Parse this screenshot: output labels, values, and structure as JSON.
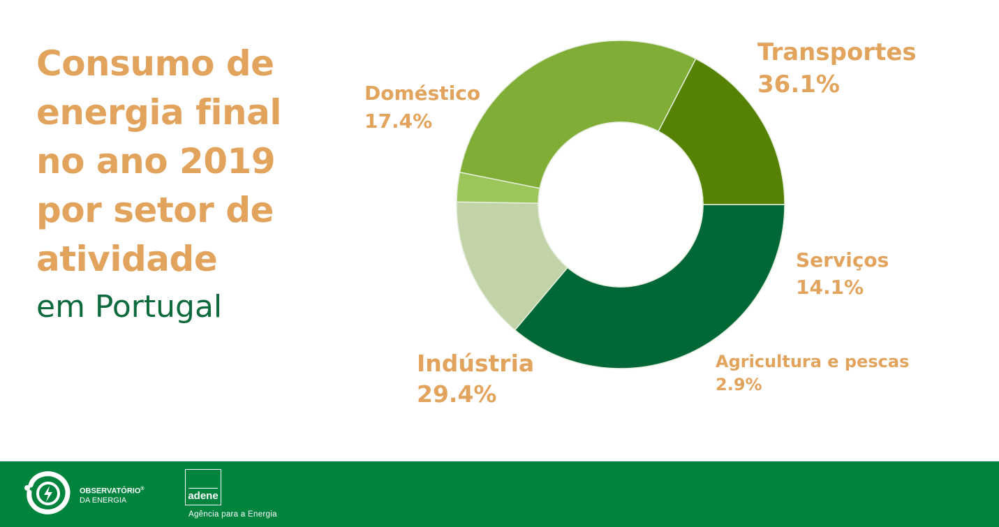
{
  "header": {
    "title_lines": [
      "Consumo de",
      "energia final",
      "no ano 2019",
      "por setor de",
      "atividade"
    ],
    "subtitle": "em Portugal"
  },
  "chart_data": {
    "type": "pie",
    "donut": true,
    "categories": [
      "Transportes",
      "Serviços",
      "Agricultura e pescas",
      "Indústria",
      "Doméstico"
    ],
    "values": [
      36.1,
      14.1,
      2.9,
      29.4,
      17.4
    ],
    "value_labels": [
      "36.1%",
      "14.1%",
      "2.9%",
      "29.4%",
      "17.4%"
    ],
    "colors": [
      "#006837",
      "#c2d3a8",
      "#9cc65a",
      "#7fad36",
      "#558202"
    ],
    "label_color": "#e2a35d",
    "slice_border": "#e6eede"
  },
  "footer": {
    "brand_line1": "OBSERVATÓRIO",
    "brand_mark": "®",
    "brand_line2": "DA ENERGIA",
    "adene_word": "adene",
    "adene_tagline": "Agência para a Energia",
    "background": "#00843d"
  }
}
